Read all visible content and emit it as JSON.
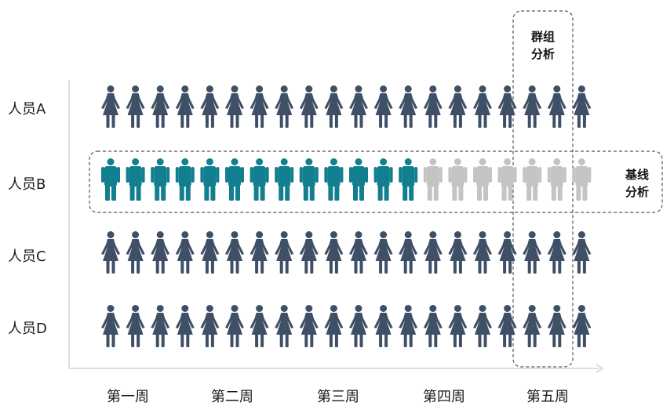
{
  "rows": [
    {
      "label": "人员A",
      "figure": "female",
      "color": "#3f5066"
    },
    {
      "label": "人员B",
      "figure": "male",
      "color_active": "#127f90",
      "color_inactive": "#c4c4c4",
      "active_count": 13
    },
    {
      "label": "人员C",
      "figure": "female",
      "color": "#3f5066"
    },
    {
      "label": "人员D",
      "figure": "female",
      "color": "#3f5066"
    }
  ],
  "weeks": [
    "第一周",
    "第二周",
    "第三周",
    "第四周",
    "第五周"
  ],
  "figures_per_row": 20,
  "group_analysis": {
    "line1": "群组",
    "line2": "分析"
  },
  "baseline_analysis": {
    "line1": "基线",
    "line2": "分析"
  }
}
